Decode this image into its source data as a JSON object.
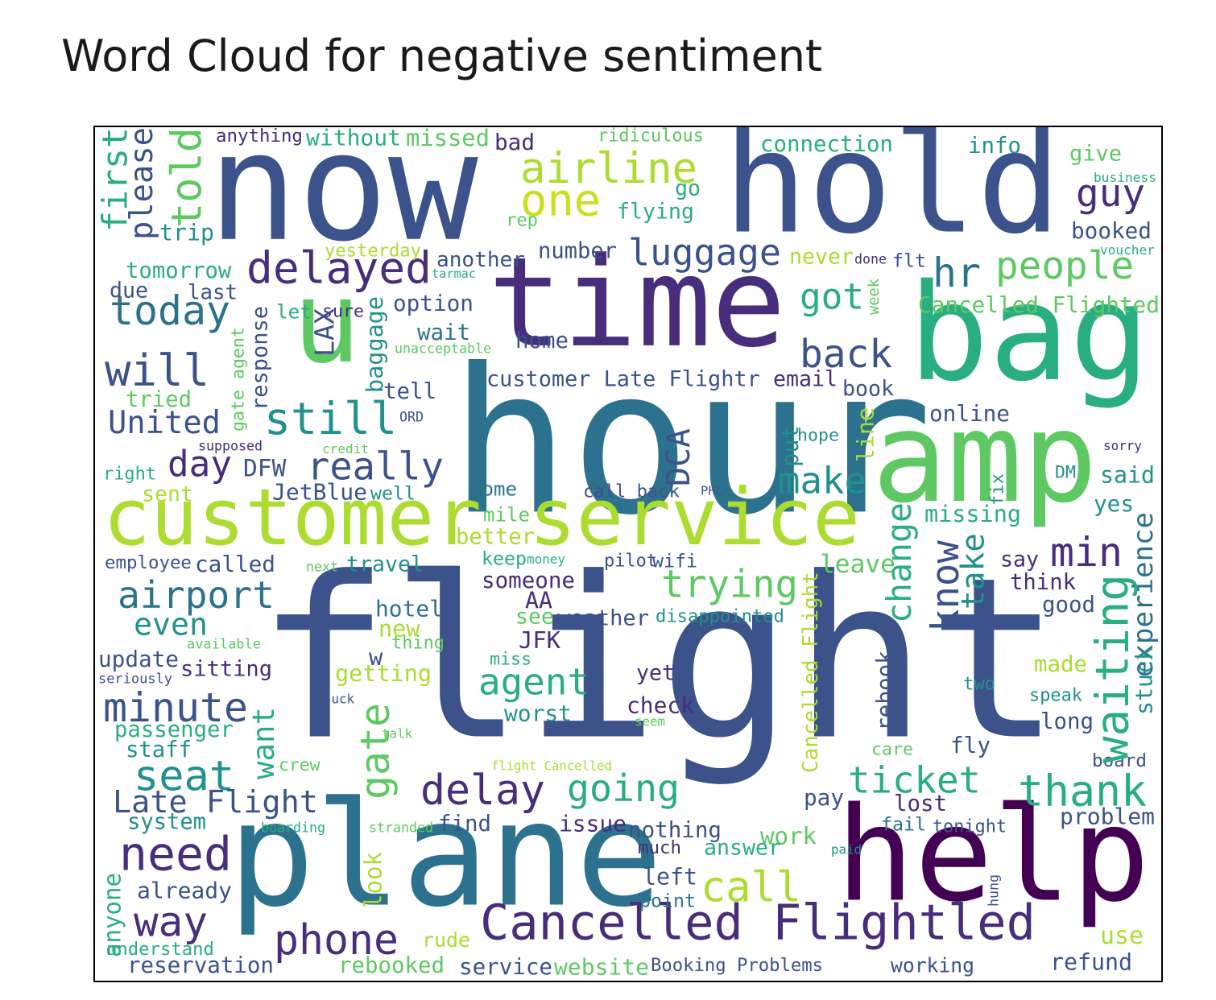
{
  "title": "Word Cloud for negative sentiment",
  "palette": {
    "dark_purple": "#440154",
    "purple": "#472d7b",
    "indigo": "#3b528b",
    "blue": "#2c728e",
    "teal": "#21918c",
    "green": "#28ae80",
    "light_green": "#5ec962",
    "lime": "#addc30",
    "yellow_green": "#c8e020"
  },
  "chart_data": {
    "type": "wordcloud",
    "words": [
      {
        "text": "flight",
        "color": "indigo",
        "rotated": false
      },
      {
        "text": "hour",
        "color": "blue",
        "rotated": false
      },
      {
        "text": "time",
        "color": "purple",
        "rotated": false
      },
      {
        "text": "now",
        "color": "indigo",
        "rotated": false
      },
      {
        "text": "hold",
        "color": "indigo",
        "rotated": false
      },
      {
        "text": "bag",
        "color": "green",
        "rotated": false
      },
      {
        "text": "plane",
        "color": "blue",
        "rotated": false
      },
      {
        "text": "help",
        "color": "dark_purple",
        "rotated": false
      },
      {
        "text": "amp",
        "color": "light_green",
        "rotated": false
      },
      {
        "text": "u",
        "color": "light_green",
        "rotated": false
      },
      {
        "text": "customer service",
        "color": "lime",
        "rotated": false
      },
      {
        "text": "Cancelled Flightled",
        "color": "purple",
        "rotated": false
      },
      {
        "text": "airline",
        "color": "lime",
        "rotated": false
      },
      {
        "text": "one",
        "color": "yellow_green",
        "rotated": false
      },
      {
        "text": "still",
        "color": "teal",
        "rotated": false
      },
      {
        "text": "delayed",
        "color": "purple",
        "rotated": false
      },
      {
        "text": "luggage",
        "color": "indigo",
        "rotated": false
      },
      {
        "text": "people",
        "color": "light_green",
        "rotated": false
      },
      {
        "text": "hr",
        "color": "blue",
        "rotated": false
      },
      {
        "text": "today",
        "color": "blue",
        "rotated": false
      },
      {
        "text": "will",
        "color": "indigo",
        "rotated": false
      },
      {
        "text": "United",
        "color": "indigo",
        "rotated": false
      },
      {
        "text": "back",
        "color": "indigo",
        "rotated": false
      },
      {
        "text": "got",
        "color": "green",
        "rotated": false
      },
      {
        "text": "day",
        "color": "purple",
        "rotated": false
      },
      {
        "text": "really",
        "color": "indigo",
        "rotated": false
      },
      {
        "text": "make",
        "color": "teal",
        "rotated": false
      },
      {
        "text": "airport",
        "color": "blue",
        "rotated": false
      },
      {
        "text": "trying",
        "color": "light_green",
        "rotated": false
      },
      {
        "text": "min",
        "color": "purple",
        "rotated": false
      },
      {
        "text": "agent",
        "color": "green",
        "rotated": false
      },
      {
        "text": "minute",
        "color": "indigo",
        "rotated": false
      },
      {
        "text": "seat",
        "color": "teal",
        "rotated": false
      },
      {
        "text": "delay",
        "color": "purple",
        "rotated": false
      },
      {
        "text": "going",
        "color": "green",
        "rotated": false
      },
      {
        "text": "ticket",
        "color": "green",
        "rotated": false
      },
      {
        "text": "thank",
        "color": "green",
        "rotated": false
      },
      {
        "text": "need",
        "color": "purple",
        "rotated": false
      },
      {
        "text": "call",
        "color": "lime",
        "rotated": false
      },
      {
        "text": "phone",
        "color": "purple",
        "rotated": false
      },
      {
        "text": "Late Flight",
        "color": "indigo",
        "rotated": false
      },
      {
        "text": "even",
        "color": "teal",
        "rotated": false
      },
      {
        "text": "way",
        "color": "purple",
        "rotated": false
      },
      {
        "text": "guy",
        "color": "purple",
        "rotated": false
      },
      {
        "text": "give",
        "color": "light_green",
        "rotated": false
      },
      {
        "text": "booked",
        "color": "indigo",
        "rotated": false
      },
      {
        "text": "info",
        "color": "teal",
        "rotated": false
      },
      {
        "text": "connection",
        "color": "green",
        "rotated": false
      },
      {
        "text": "ridiculous",
        "color": "light_green",
        "rotated": false
      },
      {
        "text": "bad",
        "color": "purple",
        "rotated": false
      },
      {
        "text": "missed",
        "color": "light_green",
        "rotated": false
      },
      {
        "text": "without",
        "color": "green",
        "rotated": false
      },
      {
        "text": "anything",
        "color": "purple",
        "rotated": false
      },
      {
        "text": "go",
        "color": "green",
        "rotated": false
      },
      {
        "text": "flying",
        "color": "green",
        "rotated": false
      },
      {
        "text": "rep",
        "color": "light_green",
        "rotated": false
      },
      {
        "text": "business",
        "color": "green",
        "rotated": false
      },
      {
        "text": "voucher",
        "color": "green",
        "rotated": false
      },
      {
        "text": "yesterday",
        "color": "lime",
        "rotated": false
      },
      {
        "text": "another",
        "color": "indigo",
        "rotated": false
      },
      {
        "text": "number",
        "color": "indigo",
        "rotated": false
      },
      {
        "text": "never",
        "color": "lime",
        "rotated": false
      },
      {
        "text": "done",
        "color": "purple",
        "rotated": false
      },
      {
        "text": "flt",
        "color": "indigo",
        "rotated": false
      },
      {
        "text": "tarmac",
        "color": "green",
        "rotated": false
      },
      {
        "text": "tomorrow",
        "color": "green",
        "rotated": false
      },
      {
        "text": "due",
        "color": "indigo",
        "rotated": false
      },
      {
        "text": "last",
        "color": "indigo",
        "rotated": false
      },
      {
        "text": "let",
        "color": "green",
        "rotated": false
      },
      {
        "text": "sure",
        "color": "purple",
        "rotated": false
      },
      {
        "text": "option",
        "color": "indigo",
        "rotated": false
      },
      {
        "text": "wait",
        "color": "blue",
        "rotated": false
      },
      {
        "text": "unacceptable",
        "color": "light_green",
        "rotated": false
      },
      {
        "text": "home",
        "color": "indigo",
        "rotated": false
      },
      {
        "text": "Cancelled Flighted",
        "color": "light_green",
        "rotated": false
      },
      {
        "text": "tried",
        "color": "light_green",
        "rotated": false
      },
      {
        "text": "tell",
        "color": "indigo",
        "rotated": false
      },
      {
        "text": "customer Late Flightr",
        "color": "indigo",
        "rotated": false
      },
      {
        "text": "email",
        "color": "purple",
        "rotated": false
      },
      {
        "text": "book",
        "color": "indigo",
        "rotated": false
      },
      {
        "text": "online",
        "color": "indigo",
        "rotated": false
      },
      {
        "text": "ORD",
        "color": "indigo",
        "rotated": false
      },
      {
        "text": "supposed",
        "color": "purple",
        "rotated": false
      },
      {
        "text": "credit",
        "color": "light_green",
        "rotated": false
      },
      {
        "text": "hope",
        "color": "teal",
        "rotated": false
      },
      {
        "text": "sorry",
        "color": "purple",
        "rotated": false
      },
      {
        "text": "right",
        "color": "green",
        "rotated": false
      },
      {
        "text": "DFW",
        "color": "indigo",
        "rotated": false
      },
      {
        "text": "sent",
        "color": "lime",
        "rotated": false
      },
      {
        "text": "JetBlue",
        "color": "indigo",
        "rotated": false
      },
      {
        "text": "well",
        "color": "teal",
        "rotated": false
      },
      {
        "text": "come",
        "color": "blue",
        "rotated": false
      },
      {
        "text": "call back",
        "color": "indigo",
        "rotated": false
      },
      {
        "text": "PHL",
        "color": "indigo",
        "rotated": false
      },
      {
        "text": "DM",
        "color": "teal",
        "rotated": false
      },
      {
        "text": "said",
        "color": "teal",
        "rotated": false
      },
      {
        "text": "missing",
        "color": "green",
        "rotated": false
      },
      {
        "text": "yes",
        "color": "teal",
        "rotated": false
      },
      {
        "text": "mile",
        "color": "light_green",
        "rotated": false
      },
      {
        "text": "better",
        "color": "lime",
        "rotated": false
      },
      {
        "text": "keep",
        "color": "green",
        "rotated": false
      },
      {
        "text": "money",
        "color": "green",
        "rotated": false
      },
      {
        "text": "pilot",
        "color": "indigo",
        "rotated": false
      },
      {
        "text": "wifi",
        "color": "indigo",
        "rotated": false
      },
      {
        "text": "leave",
        "color": "light_green",
        "rotated": false
      },
      {
        "text": "say",
        "color": "purple",
        "rotated": false
      },
      {
        "text": "employee",
        "color": "indigo",
        "rotated": false
      },
      {
        "text": "called",
        "color": "indigo",
        "rotated": false
      },
      {
        "text": "next",
        "color": "light_green",
        "rotated": false
      },
      {
        "text": "travel",
        "color": "teal",
        "rotated": false
      },
      {
        "text": "someone",
        "color": "purple",
        "rotated": false
      },
      {
        "text": "think",
        "color": "purple",
        "rotated": false
      },
      {
        "text": "good",
        "color": "indigo",
        "rotated": false
      },
      {
        "text": "AA",
        "color": "purple",
        "rotated": false
      },
      {
        "text": "hotel",
        "color": "blue",
        "rotated": false
      },
      {
        "text": "see",
        "color": "light_green",
        "rotated": false
      },
      {
        "text": "weather",
        "color": "indigo",
        "rotated": false
      },
      {
        "text": "disappointed",
        "color": "teal",
        "rotated": false
      },
      {
        "text": "new",
        "color": "lime",
        "rotated": false
      },
      {
        "text": "thing",
        "color": "light_green",
        "rotated": false
      },
      {
        "text": "available",
        "color": "light_green",
        "rotated": false
      },
      {
        "text": "JFK",
        "color": "purple",
        "rotated": false
      },
      {
        "text": "update",
        "color": "indigo",
        "rotated": false
      },
      {
        "text": "sitting",
        "color": "purple",
        "rotated": false
      },
      {
        "text": "w",
        "color": "indigo",
        "rotated": false
      },
      {
        "text": "miss",
        "color": "green",
        "rotated": false
      },
      {
        "text": "made",
        "color": "lime",
        "rotated": false
      },
      {
        "text": "seriously",
        "color": "indigo",
        "rotated": false
      },
      {
        "text": "getting",
        "color": "lime",
        "rotated": false
      },
      {
        "text": "yet",
        "color": "purple",
        "rotated": false
      },
      {
        "text": "two",
        "color": "teal",
        "rotated": false
      },
      {
        "text": "suck",
        "color": "indigo",
        "rotated": false
      },
      {
        "text": "check",
        "color": "purple",
        "rotated": false
      },
      {
        "text": "speak",
        "color": "teal",
        "rotated": false
      },
      {
        "text": "worst",
        "color": "teal",
        "rotated": false
      },
      {
        "text": "seem",
        "color": "light_green",
        "rotated": false
      },
      {
        "text": "long",
        "color": "indigo",
        "rotated": false
      },
      {
        "text": "passenger",
        "color": "green",
        "rotated": false
      },
      {
        "text": "staff",
        "color": "teal",
        "rotated": false
      },
      {
        "text": "talk",
        "color": "light_green",
        "rotated": false
      },
      {
        "text": "crew",
        "color": "light_green",
        "rotated": false
      },
      {
        "text": "flight Cancelled",
        "color": "lime",
        "rotated": false
      },
      {
        "text": "care",
        "color": "light_green",
        "rotated": false
      },
      {
        "text": "fly",
        "color": "indigo",
        "rotated": false
      },
      {
        "text": "board",
        "color": "indigo",
        "rotated": false
      },
      {
        "text": "pay",
        "color": "indigo",
        "rotated": false
      },
      {
        "text": "lost",
        "color": "purple",
        "rotated": false
      },
      {
        "text": "system",
        "color": "teal",
        "rotated": false
      },
      {
        "text": "boarding",
        "color": "green",
        "rotated": false
      },
      {
        "text": "stranded",
        "color": "light_green",
        "rotated": false
      },
      {
        "text": "find",
        "color": "indigo",
        "rotated": false
      },
      {
        "text": "issue",
        "color": "purple",
        "rotated": false
      },
      {
        "text": "nothing",
        "color": "indigo",
        "rotated": false
      },
      {
        "text": "fail",
        "color": "blue",
        "rotated": false
      },
      {
        "text": "tonight",
        "color": "indigo",
        "rotated": false
      },
      {
        "text": "problem",
        "color": "indigo",
        "rotated": false
      },
      {
        "text": "work",
        "color": "light_green",
        "rotated": false
      },
      {
        "text": "much",
        "color": "purple",
        "rotated": false
      },
      {
        "text": "answer",
        "color": "green",
        "rotated": false
      },
      {
        "text": "paid",
        "color": "teal",
        "rotated": false
      },
      {
        "text": "already",
        "color": "indigo",
        "rotated": false
      },
      {
        "text": "left",
        "color": "indigo",
        "rotated": false
      },
      {
        "text": "point",
        "color": "blue",
        "rotated": false
      },
      {
        "text": "understand",
        "color": "green",
        "rotated": false
      },
      {
        "text": "rude",
        "color": "lime",
        "rotated": false
      },
      {
        "text": "use",
        "color": "lime",
        "rotated": false
      },
      {
        "text": "reservation",
        "color": "indigo",
        "rotated": false
      },
      {
        "text": "rebooked",
        "color": "light_green",
        "rotated": false
      },
      {
        "text": "service",
        "color": "indigo",
        "rotated": false
      },
      {
        "text": "website",
        "color": "light_green",
        "rotated": false
      },
      {
        "text": "Booking Problems",
        "color": "indigo",
        "rotated": false
      },
      {
        "text": "working",
        "color": "indigo",
        "rotated": false
      },
      {
        "text": "refund",
        "color": "indigo",
        "rotated": false
      },
      {
        "text": "first",
        "color": "green",
        "rotated": true
      },
      {
        "text": "please",
        "color": "indigo",
        "rotated": true
      },
      {
        "text": "told",
        "color": "light_green",
        "rotated": true
      },
      {
        "text": "trip",
        "color": "teal",
        "rotated": false
      },
      {
        "text": "week",
        "color": "light_green",
        "rotated": true
      },
      {
        "text": "LAX",
        "color": "indigo",
        "rotated": true
      },
      {
        "text": "response",
        "color": "indigo",
        "rotated": true
      },
      {
        "text": "gate agent",
        "color": "light_green",
        "rotated": true
      },
      {
        "text": "baggage",
        "color": "teal",
        "rotated": true
      },
      {
        "text": "DCA",
        "color": "indigo",
        "rotated": true
      },
      {
        "text": "put",
        "color": "teal",
        "rotated": true
      },
      {
        "text": "line",
        "color": "lime",
        "rotated": true
      },
      {
        "text": "fix",
        "color": "teal",
        "rotated": true
      },
      {
        "text": "change",
        "color": "green",
        "rotated": true
      },
      {
        "text": "know",
        "color": "indigo",
        "rotated": true
      },
      {
        "text": "take",
        "color": "teal",
        "rotated": true
      },
      {
        "text": "Cancelled Flight",
        "color": "lime",
        "rotated": true
      },
      {
        "text": "waiting",
        "color": "green",
        "rotated": true
      },
      {
        "text": "experience",
        "color": "blue",
        "rotated": true
      },
      {
        "text": "stuck",
        "color": "teal",
        "rotated": true
      },
      {
        "text": "rebook",
        "color": "indigo",
        "rotated": true
      },
      {
        "text": "want",
        "color": "green",
        "rotated": true
      },
      {
        "text": "gate",
        "color": "light_green",
        "rotated": true
      },
      {
        "text": "look",
        "color": "lime",
        "rotated": true
      },
      {
        "text": "anyone",
        "color": "green",
        "rotated": true
      },
      {
        "text": "hung",
        "color": "indigo",
        "rotated": true
      }
    ]
  }
}
